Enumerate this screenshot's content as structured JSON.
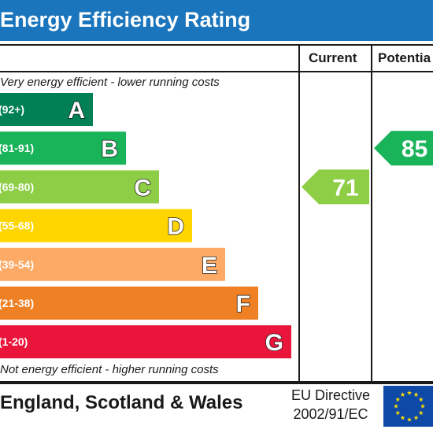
{
  "header": {
    "title": "Energy Efficiency Rating"
  },
  "columns": {
    "current": "Current",
    "potential": "Potentia"
  },
  "notes": {
    "top": "Very energy efficient - lower running costs",
    "bottom": "Not energy efficient - higher running costs"
  },
  "chart_data": {
    "type": "bar",
    "bands": [
      {
        "letter": "A",
        "range": "(92+)",
        "color": "#008054"
      },
      {
        "letter": "B",
        "range": "(81-91)",
        "color": "#19b459"
      },
      {
        "letter": "C",
        "range": "(69-80)",
        "color": "#8dce46"
      },
      {
        "letter": "D",
        "range": "(55-68)",
        "color": "#ffd500"
      },
      {
        "letter": "E",
        "range": "(39-54)",
        "color": "#fcaa65"
      },
      {
        "letter": "F",
        "range": "(21-38)",
        "color": "#ef8023"
      },
      {
        "letter": "G",
        "range": "(1-20)",
        "color": "#e9153b"
      }
    ],
    "current": {
      "value": 71,
      "band": "C",
      "color": "#8dce46"
    },
    "potential": {
      "value": 85,
      "band": "B",
      "color": "#19b459"
    }
  },
  "footer": {
    "region": "England, Scotland & Wales",
    "directive_line1": "EU Directive",
    "directive_line2": "2002/91/EC"
  },
  "colors": {
    "title_bar": "#1b75bc",
    "flag": "#0e49a8",
    "stars": "#ffdd00"
  }
}
